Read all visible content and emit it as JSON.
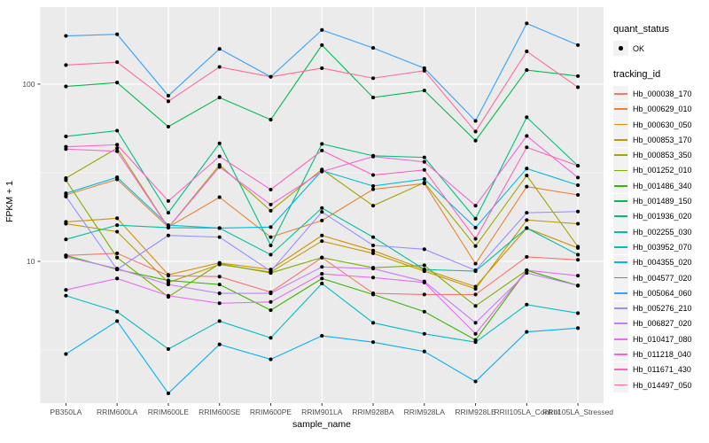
{
  "figure": {
    "background": "#FFFFFF"
  },
  "legend": {
    "quant_status": {
      "title": "quant_status",
      "items": [
        {
          "label": "OK",
          "marker": "black-point"
        }
      ]
    },
    "tracking_id": {
      "title": "tracking_id"
    }
  },
  "chart_data": {
    "type": "line",
    "title": "",
    "xlabel": "sample_name",
    "ylabel": "FPKM + 1",
    "y_scale": "log10",
    "ylim": [
      1.585,
      272
    ],
    "y_ticks": [
      100,
      10
    ],
    "y_minor_ticks": [
      3.162,
      31.62
    ],
    "grid": true,
    "legend_position": "right",
    "panel_bg": "#EBEBEB",
    "grid_color": "#FFFFFF",
    "axis_text_color": "#4D4D4D",
    "tick_color": "#333333",
    "point_color": "#000000",
    "categories": [
      "PB350LA",
      "RRIM600LA",
      "RRIM600LE",
      "RRIM600SE",
      "RRIM600PE",
      "RRIM901LA",
      "RRIM928BA",
      "RRIM928LA",
      "RRIM928LE",
      "RRII105LA_Control",
      "RRII105LA_Stressed"
    ],
    "series": [
      {
        "name": "Hb_000038_170",
        "color": "#F8766D",
        "values": [
          10.8,
          11.1,
          8.3,
          8.2,
          6.7,
          10.5,
          6.6,
          6.5,
          6.5,
          10.6,
          10.2
        ]
      },
      {
        "name": "Hb_000629_010",
        "color": "#EA8331",
        "values": [
          23.7,
          29.0,
          15.6,
          23.0,
          13.7,
          17.0,
          25.5,
          27.5,
          9.7,
          26.4,
          23.7
        ]
      },
      {
        "name": "Hb_000630_050",
        "color": "#D89000",
        "values": [
          16.7,
          17.5,
          8.4,
          9.8,
          9.0,
          14.0,
          11.5,
          9.0,
          7.2,
          15.4,
          11.9
        ]
      },
      {
        "name": "Hb_000853_170",
        "color": "#C09B00",
        "values": [
          16.3,
          14.7,
          7.6,
          9.6,
          8.7,
          13.0,
          11.1,
          8.8,
          7.0,
          17.1,
          16.3
        ]
      },
      {
        "name": "Hb_000853_350",
        "color": "#A3A500",
        "values": [
          29.5,
          43.5,
          15.5,
          35.0,
          19.3,
          33.0,
          20.6,
          27.8,
          12.2,
          30.5,
          12.1
        ]
      },
      {
        "name": "Hb_001252_010",
        "color": "#7CAE00",
        "values": [
          28.7,
          10.5,
          6.3,
          9.7,
          8.6,
          10.5,
          9.2,
          9.5,
          5.6,
          8.9,
          7.3
        ]
      },
      {
        "name": "Hb_001486_340",
        "color": "#39B600",
        "values": [
          10.8,
          9.0,
          7.8,
          7.4,
          5.3,
          8.0,
          6.5,
          5.2,
          3.6,
          8.9,
          7.3
        ]
      },
      {
        "name": "Hb_001489_150",
        "color": "#00BB4E",
        "values": [
          97,
          102,
          57.5,
          84,
          63,
          166,
          84,
          92,
          48,
          120,
          111
        ]
      },
      {
        "name": "Hb_001936_020",
        "color": "#00BF7D",
        "values": [
          50.7,
          54.6,
          18.8,
          46.3,
          12.3,
          46.0,
          39.4,
          38.6,
          17.4,
          65.0,
          34.6
        ]
      },
      {
        "name": "Hb_002255_030",
        "color": "#00C1A3",
        "values": [
          13.3,
          16.0,
          15.5,
          15.4,
          10.9,
          20.0,
          13.7,
          9.0,
          8.8,
          15.4,
          10.9
        ]
      },
      {
        "name": "Hb_003952_070",
        "color": "#00BFC4",
        "values": [
          6.4,
          5.2,
          3.2,
          4.6,
          3.7,
          7.5,
          4.5,
          3.9,
          3.5,
          5.7,
          5.1
        ]
      },
      {
        "name": "Hb_004355_020",
        "color": "#00BAE0",
        "values": [
          24.2,
          29.8,
          16.0,
          15.4,
          15.6,
          32.5,
          26.6,
          29.1,
          15.5,
          33.4,
          26.9
        ]
      },
      {
        "name": "Hb_004577_020",
        "color": "#00B0F6",
        "values": [
          3.0,
          4.6,
          1.8,
          3.4,
          2.8,
          3.8,
          3.5,
          3.1,
          2.1,
          4.0,
          4.2
        ]
      },
      {
        "name": "Hb_005064_060",
        "color": "#35A2FF",
        "values": [
          187,
          191,
          86,
          158,
          110,
          202,
          160,
          123,
          62,
          220,
          166
        ]
      },
      {
        "name": "Hb_005276_210",
        "color": "#9590FF",
        "values": [
          23.2,
          9.0,
          14.0,
          13.7,
          8.8,
          19.0,
          12.3,
          11.7,
          8.9,
          18.8,
          19.1
        ]
      },
      {
        "name": "Hb_006827_020",
        "color": "#C77CFF",
        "values": [
          10.6,
          9.1,
          7.4,
          6.6,
          6.6,
          9.3,
          9.1,
          7.7,
          4.5,
          8.6,
          7.3
        ]
      },
      {
        "name": "Hb_010417_080",
        "color": "#E76BF3",
        "values": [
          6.9,
          8.0,
          6.4,
          5.8,
          5.9,
          8.5,
          8.1,
          7.6,
          3.9,
          8.9,
          8.3
        ]
      },
      {
        "name": "Hb_011218_040",
        "color": "#FA62DB",
        "values": [
          43.0,
          41.8,
          15.5,
          34.1,
          20.9,
          32.1,
          39.0,
          36.4,
          20.6,
          51.0,
          29.7
        ]
      },
      {
        "name": "Hb_011671_430",
        "color": "#FF62BC",
        "values": [
          44.3,
          45.5,
          21.9,
          39.1,
          25.4,
          42.2,
          30.7,
          32.8,
          13.4,
          44.0,
          34.6
        ]
      },
      {
        "name": "Hb_014497_050",
        "color": "#FF6A98",
        "values": [
          128,
          133,
          80,
          125,
          110,
          123,
          108,
          119,
          54,
          153,
          96
        ]
      }
    ]
  }
}
